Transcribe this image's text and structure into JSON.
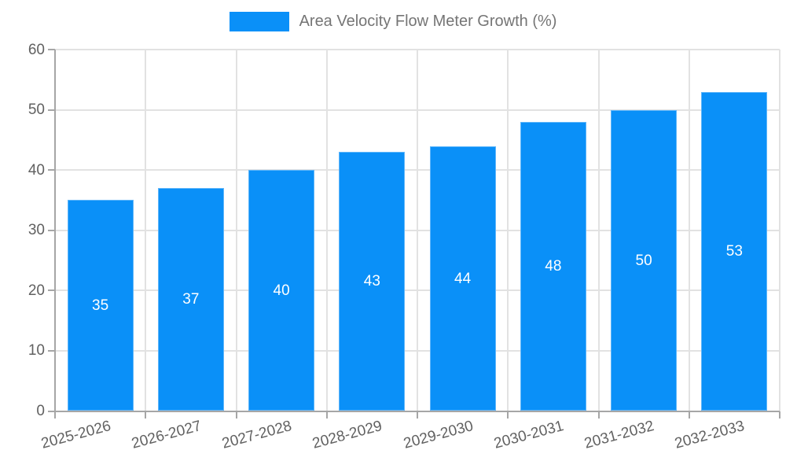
{
  "chart_data": {
    "type": "bar",
    "title": "Area Velocity Flow Meter Growth (%)",
    "legend": {
      "label": "Area Velocity Flow Meter Growth (%)",
      "position": "top"
    },
    "categories": [
      "2025-2026",
      "2026-2027",
      "2027-2028",
      "2028-2029",
      "2029-2030",
      "2030-2031",
      "2031-2032",
      "2032-2033"
    ],
    "series": [
      {
        "name": "Area Velocity Flow Meter Growth (%)",
        "values": [
          35,
          37,
          40,
          43,
          44,
          48,
          50,
          53
        ]
      }
    ],
    "bar_labels": [
      "35",
      "37",
      "40",
      "43",
      "44",
      "48",
      "50",
      "53"
    ],
    "xlabel": "",
    "ylabel": "",
    "ylim": [
      0,
      60
    ],
    "yticks": [
      0,
      10,
      20,
      30,
      40,
      50,
      60
    ],
    "grid": true,
    "colors": {
      "bar": "#0a90f8",
      "bar_label": "#ffffff",
      "grid": "#e2e2e2",
      "axis": "#a6a6a6",
      "tick_label": "#616161",
      "legend_text": "#757575",
      "background": "#ffffff"
    }
  }
}
